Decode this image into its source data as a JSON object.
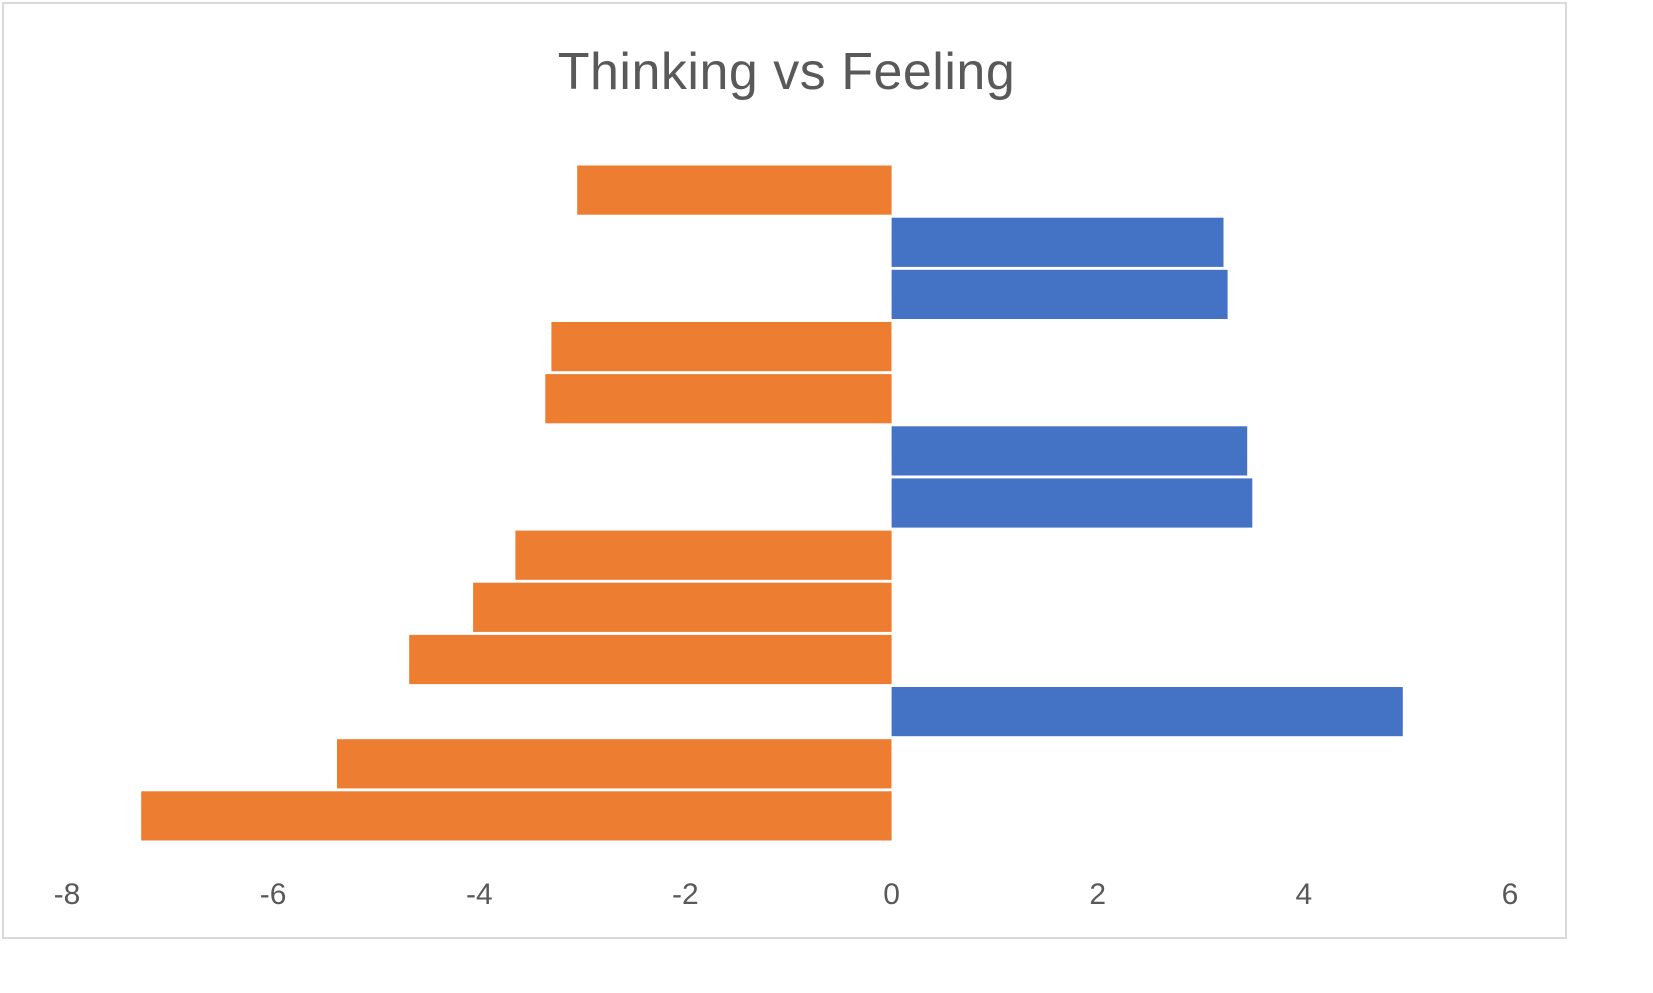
{
  "chart_data": {
    "type": "bar",
    "orientation": "horizontal",
    "title": "Thinking vs Feeling",
    "xlabel": "",
    "ylabel": "",
    "xlim": [
      -8,
      6
    ],
    "xticks": [
      "-8",
      "-6",
      "-4",
      "-2",
      "0",
      "2",
      "4",
      "6"
    ],
    "grid": false,
    "legend": "none",
    "colors": {
      "positive": "#4472c4",
      "negative": "#ed7d31"
    },
    "values": [
      -3.05,
      3.22,
      3.26,
      -3.3,
      -3.36,
      3.45,
      3.5,
      -3.65,
      -4.06,
      -4.68,
      4.96,
      -5.38,
      -7.28
    ]
  }
}
